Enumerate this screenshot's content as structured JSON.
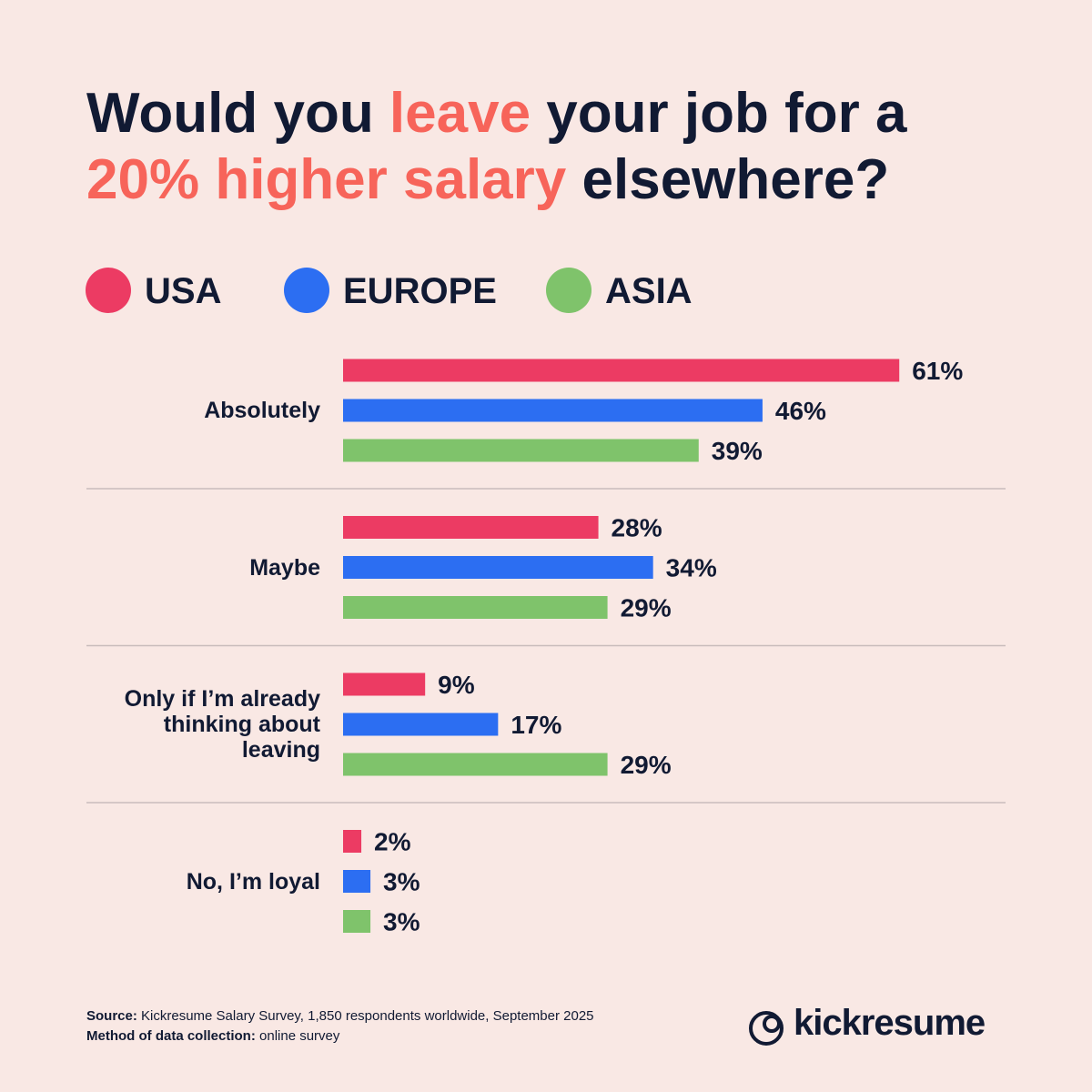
{
  "chart_data": {
    "type": "hbar",
    "title": [
      [
        {
          "text": "Would you "
        },
        {
          "text": "leave",
          "color": "#f7645a"
        },
        {
          "text": " your job for a"
        }
      ],
      [
        {
          "text": "20% higher salary",
          "color": "#f7645a"
        },
        {
          "text": " elsewhere?"
        }
      ]
    ],
    "categories": [
      "Absolutely",
      "Maybe",
      "Only if I’m already thinking about leaving",
      "No, I’m loyal"
    ],
    "series": [
      {
        "name": "USA",
        "color": "#ec3b63",
        "values": [
          61,
          28,
          9,
          2
        ],
        "value_labels": [
          "61%",
          "28%",
          "9%",
          "2%"
        ]
      },
      {
        "name": "EUROPE",
        "color": "#2c6ef2",
        "values": [
          46,
          34,
          17,
          3
        ],
        "value_labels": [
          "46%",
          "34%",
          "17%",
          "3%"
        ]
      },
      {
        "name": "ASIA",
        "color": "#7fc36b",
        "values": [
          39,
          29,
          29,
          3
        ],
        "value_labels": [
          "39%",
          "29%",
          "29%",
          "3%"
        ]
      }
    ],
    "legend": "top-left"
  },
  "footer": {
    "source_label": "Source:",
    "source": "Kickresume Salary Survey, 1,850 respondents worldwide, September 2025",
    "method_label": "Method of data collection:",
    "method": "online survey"
  },
  "brand": "kickresume"
}
